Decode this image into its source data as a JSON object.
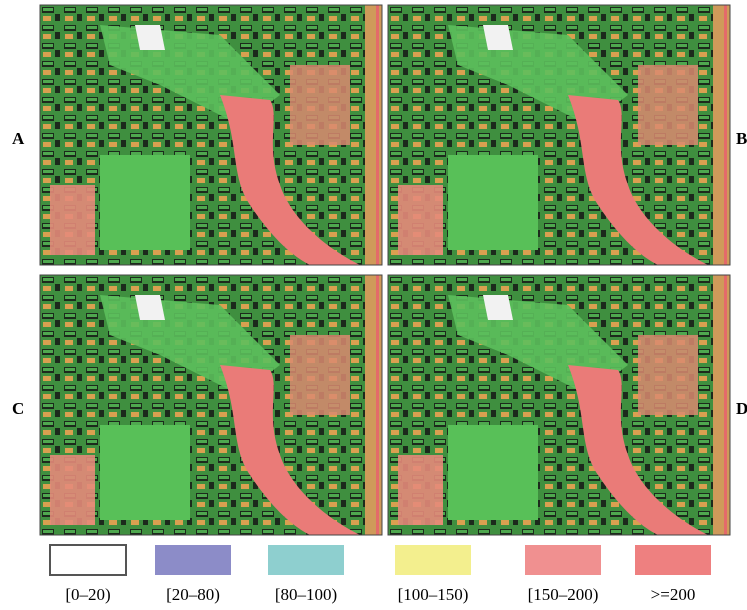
{
  "panels": [
    {
      "label": "A"
    },
    {
      "label": "B"
    },
    {
      "label": "C"
    },
    {
      "label": "D"
    }
  ],
  "legend": [
    {
      "label": "[0–20)",
      "color": "#ffffff"
    },
    {
      "label": "[20–80)",
      "color": "#8c8cc8"
    },
    {
      "label": "[80–100)",
      "color": "#8ecfcf"
    },
    {
      "label": "[100–150)",
      "color": "#f3ef8e"
    },
    {
      "label": "[150–200)",
      "color": "#f09090"
    },
    {
      "label": ">=200",
      "color": "#ee8080"
    }
  ]
}
